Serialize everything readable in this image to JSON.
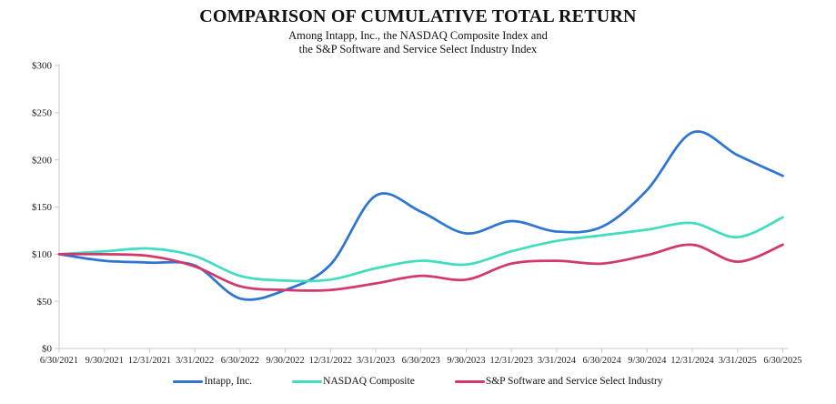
{
  "header": {
    "title": "COMPARISON OF CUMULATIVE TOTAL RETURN",
    "subtitle_line1": "Among Intapp, Inc., the NASDAQ Composite Index and",
    "subtitle_line2": "the S&P Software and Service Select Industry Index"
  },
  "chart_data": {
    "type": "line",
    "title": "COMPARISON OF CUMULATIVE TOTAL RETURN",
    "categories": [
      "6/30/2021",
      "9/30/2021",
      "12/31/2021",
      "3/31/2022",
      "6/30/2022",
      "9/30/2022",
      "12/31/2022",
      "3/31/2023",
      "6/30/2023",
      "9/30/2023",
      "12/31/2023",
      "3/31/2024",
      "6/30/2024",
      "9/30/2024",
      "12/31/2024",
      "3/31/2025",
      "6/30/2025"
    ],
    "series": [
      {
        "name": "Intapp, Inc.",
        "color": "#2e76d2",
        "values": [
          100,
          93,
          91,
          88,
          53,
          62,
          89,
          162,
          145,
          122,
          135,
          124,
          129,
          168,
          229,
          205,
          183
        ]
      },
      {
        "name": "NASDAQ Composite",
        "color": "#40ddc0",
        "values": [
          100,
          103,
          106,
          98,
          77,
          72,
          73,
          85,
          93,
          89,
          103,
          114,
          120,
          126,
          133,
          118,
          139
        ]
      },
      {
        "name": "S&P Software and Service Select Industry",
        "color": "#d2386a",
        "values": [
          100,
          100,
          98,
          87,
          66,
          62,
          62,
          69,
          77,
          73,
          90,
          93,
          90,
          99,
          110,
          92,
          110
        ]
      }
    ],
    "xlabel": "",
    "ylabel": "",
    "ylim": [
      0,
      300
    ],
    "y_ticks": [
      {
        "label": "$0",
        "value": 0
      },
      {
        "label": "$50",
        "value": 50
      },
      {
        "label": "$100",
        "value": 100
      },
      {
        "label": "$150",
        "value": 150
      },
      {
        "label": "$200",
        "value": 200
      },
      {
        "label": "$250",
        "value": 250
      },
      {
        "label": "$300",
        "value": 300
      }
    ],
    "grid": false,
    "legend_position": "bottom",
    "axis_color": "#c9c9c9",
    "tick_text_color": "#1c1c1c",
    "line_width": 2.75
  }
}
